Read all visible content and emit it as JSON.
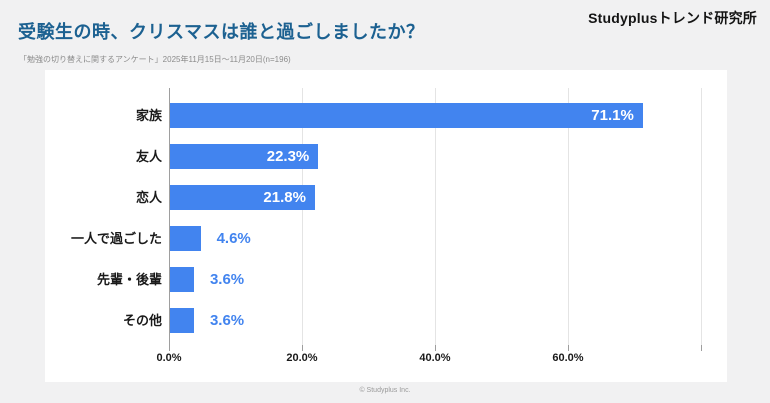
{
  "header": {
    "brand": "Studyplusトレンド研究所",
    "title": "受験生の時、クリスマスは誰と過ごしましたか？",
    "subtitle": "「勉強の切り替えに関するアンケート」2025年11月15日～11月20日(n=196)"
  },
  "footer": {
    "copyright": "© Studyplus Inc."
  },
  "colors": {
    "page_background": "#f1f1f2",
    "panel_background": "#ffffff",
    "title_text": "#1c6191",
    "bar": "#4284ef",
    "value_text_inside": "#ffffff",
    "value_text_outside": "#4284ef",
    "gridline": "#e4e4e4",
    "axis_line": "#9e9e9e"
  },
  "chart_data": {
    "type": "bar",
    "orientation": "horizontal",
    "title": "受験生の時、クリスマスは誰と過ごしましたか？",
    "categories": [
      "家族",
      "友人",
      "恋人",
      "一人で過ごした",
      "先輩・後輩",
      "その他"
    ],
    "values": [
      71.1,
      22.3,
      21.8,
      4.6,
      3.6,
      3.6
    ],
    "value_labels": [
      "71.1%",
      "22.3%",
      "21.8%",
      "4.6%",
      "3.6%",
      "3.6%"
    ],
    "xlabel": "",
    "ylabel": "",
    "xlim": [
      0,
      80
    ],
    "x_tick_values": [
      0,
      20,
      40,
      60
    ],
    "x_tick_labels": [
      "0.0%",
      "20.0%",
      "40.0%",
      "60.0%"
    ],
    "gridline_values": [
      0,
      20,
      40,
      60,
      80
    ],
    "grid": true,
    "legend": false,
    "bar_color": "#4284ef",
    "sample_size": "n=196"
  }
}
